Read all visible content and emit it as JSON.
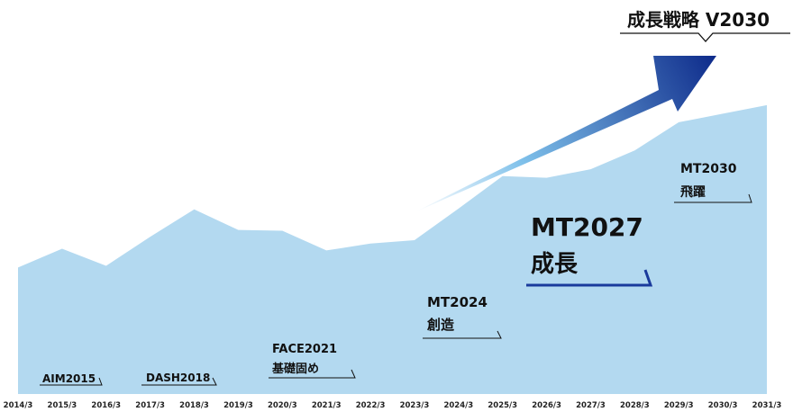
{
  "colors": {
    "area": "#b3d9f0",
    "arrow_dark": "#0d2a8a",
    "arrow_light": "#7ec0ea",
    "underline_dark": "#1a3a9c",
    "text": "#111111"
  },
  "chart_data": {
    "type": "area",
    "title": "成長戦略 V2030",
    "xlabel": "",
    "ylabel": "",
    "grid": false,
    "y_axis_visible": false,
    "x": [
      "2014/3",
      "2015/3",
      "2016/3",
      "2017/3",
      "2018/3",
      "2019/3",
      "2020/3",
      "2021/3",
      "2022/3",
      "2023/3",
      "2024/3",
      "2025/3",
      "2026/3",
      "2027/3",
      "2028/3",
      "2029/3",
      "2030/3",
      "2031/3"
    ],
    "values": [
      148,
      170,
      150,
      184,
      216,
      192,
      191,
      168,
      176,
      180,
      217,
      255,
      253,
      263,
      285,
      318,
      328,
      338
    ],
    "annotations": [
      {
        "line1": "AIM2015",
        "line2": ""
      },
      {
        "line1": "DASH2018",
        "line2": ""
      },
      {
        "line1": "FACE2021",
        "line2": "基礎固め"
      },
      {
        "line1": "MT2024",
        "line2": "創造"
      },
      {
        "line1": "MT2027",
        "line2": "成長"
      },
      {
        "line1": "MT2030",
        "line2": "飛躍"
      }
    ]
  }
}
